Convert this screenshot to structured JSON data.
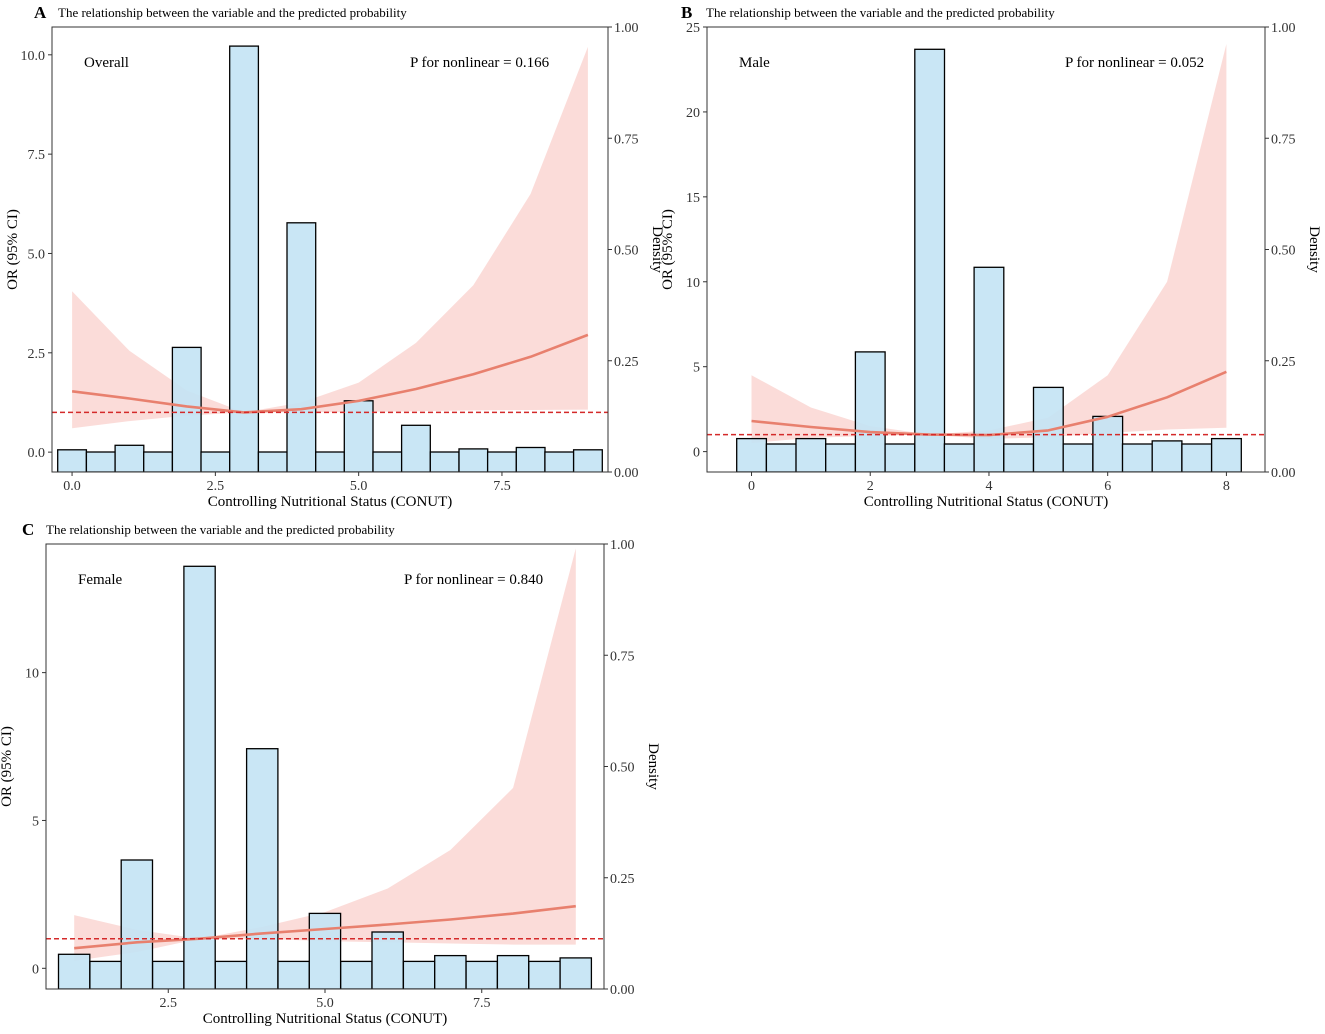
{
  "colors": {
    "bar_fill": "#c3e3f4",
    "bar_stroke": "#000000",
    "ci_fill": "#f6b2aa",
    "curve": "#e8806e",
    "refline": "#d42a2a"
  },
  "chart_data": [
    {
      "type": "combo",
      "panel_letter": "A",
      "title": "The relationship between the variable and the predicted probability",
      "subgroup": "Overall",
      "pvalue_text": "P for nonlinear = 0.166",
      "xlabel": "Controlling Nutritional Status (CONUT)",
      "ylabel": "OR (95% CI)",
      "y2label": "Density",
      "xlim": [
        -0.35,
        9.35
      ],
      "ylim": [
        -0.5,
        10.7
      ],
      "y2lim": [
        0,
        1
      ],
      "xticks": [
        0,
        2.5,
        5,
        7.5
      ],
      "xtick_labels": [
        "0.0",
        "2.5",
        "5.0",
        "7.5"
      ],
      "yticks": [
        0,
        2.5,
        5,
        7.5,
        10
      ],
      "ytick_labels": [
        "0.0",
        "2.5",
        "5.0",
        "7.5",
        "10.0"
      ],
      "y2ticks": [
        0,
        0.25,
        0.5,
        0.75,
        1
      ],
      "y2tick_labels": [
        "0.00",
        "0.25",
        "0.50",
        "0.75",
        "1.00"
      ],
      "reference_or": 1,
      "hist_bins": [
        -0.25,
        0.25,
        0.75,
        1.25,
        1.75,
        2.25,
        2.75,
        3.25,
        3.75,
        4.25,
        4.75,
        5.25,
        5.75,
        6.25,
        6.75,
        7.25,
        7.75,
        8.25,
        8.75,
        9.25
      ],
      "hist_density": [
        0.05,
        0.045,
        0.06,
        0.045,
        0.28,
        0.045,
        0.957,
        0.045,
        0.56,
        0.045,
        0.16,
        0.045,
        0.105,
        0.045,
        0.052,
        0.045,
        0.055,
        0.045,
        0.05
      ],
      "curve_x": [
        0,
        1,
        2,
        3,
        4,
        5,
        6,
        7,
        8,
        9
      ],
      "curve_or": [
        1.53,
        1.35,
        1.15,
        1.0,
        1.08,
        1.29,
        1.59,
        1.96,
        2.4,
        2.95
      ],
      "ci_lower": [
        0.6,
        0.78,
        0.92,
        1.0,
        1.0,
        1.01,
        1.03,
        1.05,
        1.06,
        1.07
      ],
      "ci_upper": [
        4.05,
        2.55,
        1.55,
        1.0,
        1.25,
        1.75,
        2.75,
        4.2,
        6.5,
        10.2
      ]
    },
    {
      "type": "combo",
      "panel_letter": "B",
      "title": "The relationship between the variable and the predicted probability",
      "subgroup": "Male",
      "pvalue_text": "P for nonlinear = 0.052",
      "xlabel": "Controlling Nutritional Status (CONUT)",
      "ylabel": "OR (95% CI)",
      "y2label": "Density",
      "xlim": [
        -0.75,
        8.65
      ],
      "ylim": [
        -1.2,
        25.0
      ],
      "y2lim": [
        0,
        1
      ],
      "xticks": [
        0,
        2,
        4,
        6,
        8
      ],
      "xtick_labels": [
        "0",
        "2",
        "4",
        "6",
        "8"
      ],
      "yticks": [
        0,
        5,
        10,
        15,
        20,
        25
      ],
      "ytick_labels": [
        "0",
        "5",
        "10",
        "15",
        "20",
        "25"
      ],
      "y2ticks": [
        0,
        0.25,
        0.5,
        0.75,
        1
      ],
      "y2tick_labels": [
        "0.00",
        "0.25",
        "0.50",
        "0.75",
        "1.00"
      ],
      "reference_or": 1,
      "hist_bins": [
        -0.25,
        0.25,
        0.75,
        1.25,
        1.75,
        2.25,
        2.75,
        3.25,
        3.75,
        4.25,
        4.75,
        5.25,
        5.75,
        6.25,
        6.75,
        7.25,
        7.75,
        8.25
      ],
      "hist_density": [
        0.075,
        0.063,
        0.075,
        0.063,
        0.27,
        0.063,
        0.95,
        0.063,
        0.46,
        0.063,
        0.19,
        0.063,
        0.125,
        0.063,
        0.07,
        0.063,
        0.075
      ],
      "curve_x": [
        0,
        1,
        2,
        3,
        4,
        5,
        6,
        7,
        8
      ],
      "curve_or": [
        1.8,
        1.45,
        1.15,
        1.0,
        0.97,
        1.25,
        2.05,
        3.2,
        4.7
      ],
      "ci_lower": [
        0.5,
        0.82,
        0.92,
        1.0,
        0.75,
        0.85,
        1.1,
        1.3,
        1.4
      ],
      "ci_upper": [
        4.5,
        2.6,
        1.5,
        1.0,
        1.25,
        2.0,
        4.5,
        10.0,
        24.0
      ]
    },
    {
      "type": "combo",
      "panel_letter": "C",
      "title": "The relationship between the variable and the predicted probability",
      "subgroup": "Female",
      "pvalue_text": "P for nonlinear = 0.840",
      "xlabel": "Controlling Nutritional Status (CONUT)",
      "ylabel": "OR (95% CI)",
      "y2label": "Density",
      "xlim": [
        0.55,
        9.45
      ],
      "ylim": [
        -0.7,
        14.35
      ],
      "y2lim": [
        0,
        1
      ],
      "xticks": [
        2.5,
        5,
        7.5
      ],
      "xtick_labels": [
        "2.5",
        "5.0",
        "7.5"
      ],
      "yticks": [
        0,
        5,
        10
      ],
      "ytick_labels": [
        "0",
        "5",
        "10"
      ],
      "y2ticks": [
        0,
        0.25,
        0.5,
        0.75,
        1
      ],
      "y2tick_labels": [
        "0.00",
        "0.25",
        "0.50",
        "0.75",
        "1.00"
      ],
      "reference_or": 1,
      "hist_bins": [
        0.75,
        1.25,
        1.75,
        2.25,
        2.75,
        3.25,
        3.75,
        4.25,
        4.75,
        5.25,
        5.75,
        6.25,
        6.75,
        7.25,
        7.75,
        8.25,
        8.75,
        9.25
      ],
      "hist_density": [
        0.078,
        0.062,
        0.29,
        0.062,
        0.95,
        0.062,
        0.54,
        0.062,
        0.17,
        0.062,
        0.128,
        0.062,
        0.075,
        0.062,
        0.075,
        0.062,
        0.07
      ],
      "curve_x": [
        1,
        2,
        3,
        4,
        5,
        6,
        7,
        8,
        9
      ],
      "curve_or": [
        0.68,
        0.88,
        1.0,
        1.18,
        1.33,
        1.48,
        1.65,
        1.85,
        2.1
      ],
      "ci_lower": [
        0.25,
        0.55,
        1.0,
        1.0,
        0.92,
        0.88,
        0.84,
        0.8,
        0.8
      ],
      "ci_upper": [
        1.8,
        1.3,
        1.0,
        1.4,
        1.9,
        2.7,
        4.0,
        6.1,
        14.2
      ]
    }
  ]
}
